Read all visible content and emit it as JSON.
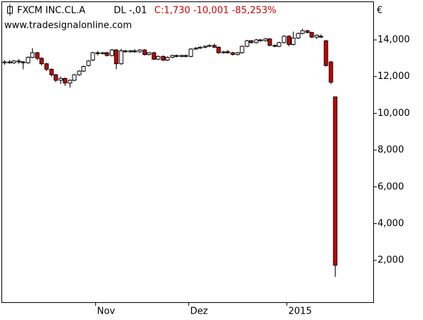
{
  "chart_data": {
    "type": "candlestick",
    "title": "FXCM INC.CL.A",
    "subtitle": "DL -,01",
    "quote": "C:1,730 -10,001 -85,253%",
    "watermark": "www.tradesignalonline.com",
    "currency": "€",
    "categories": [
      null,
      null,
      null,
      null,
      null,
      null,
      null,
      null,
      null,
      null,
      null,
      null,
      null,
      null,
      null,
      null,
      null,
      null,
      null,
      null,
      "Nov",
      null,
      null,
      null,
      null,
      null,
      null,
      null,
      null,
      null,
      null,
      null,
      null,
      null,
      null,
      null,
      null,
      null,
      null,
      null,
      "Dez",
      null,
      null,
      null,
      null,
      null,
      null,
      null,
      null,
      null,
      null,
      null,
      null,
      null,
      null,
      null,
      null,
      null,
      null,
      null,
      null,
      "2015",
      null,
      null,
      null,
      null,
      null,
      null,
      null,
      null,
      null,
      null
    ],
    "open": [
      12750,
      12800,
      12750,
      12850,
      12800,
      12750,
      13050,
      13300,
      13000,
      12700,
      12400,
      12100,
      11800,
      11900,
      11650,
      11800,
      12100,
      12300,
      12600,
      12900,
      13300,
      13250,
      13300,
      13150,
      13450,
      12700,
      13400,
      13350,
      13400,
      13350,
      13450,
      13200,
      13300,
      12950,
      13100,
      12900,
      13050,
      13150,
      13100,
      13150,
      13100,
      13500,
      13550,
      13600,
      13650,
      13700,
      13600,
      13300,
      13350,
      13300,
      13200,
      13300,
      13650,
      13950,
      13850,
      14000,
      13950,
      14050,
      13700,
      13650,
      13850,
      14200,
      13750,
      14100,
      14350,
      14500,
      14400,
      14150,
      14200,
      13950,
      12800,
      10900
    ],
    "high": [
      12900,
      12900,
      12900,
      12950,
      12850,
      13100,
      13550,
      13350,
      13050,
      12750,
      12450,
      12150,
      12000,
      11950,
      11850,
      12150,
      12350,
      12600,
      12900,
      13350,
      13400,
      13350,
      13350,
      13500,
      13500,
      13500,
      13450,
      13450,
      13500,
      13500,
      13500,
      13350,
      13350,
      13150,
      13150,
      13100,
      13200,
      13200,
      13200,
      13200,
      13550,
      13600,
      13650,
      13700,
      13750,
      13800,
      13650,
      13400,
      13450,
      13350,
      13350,
      13700,
      14000,
      14000,
      14050,
      14050,
      14100,
      14100,
      13750,
      13900,
      14250,
      14250,
      14450,
      14400,
      14600,
      14550,
      14450,
      14300,
      14300,
      14000,
      12850,
      10900
    ],
    "low": [
      12650,
      12700,
      12700,
      12700,
      12400,
      12700,
      13000,
      12900,
      12600,
      12300,
      12000,
      11700,
      11600,
      11500,
      11400,
      11750,
      12050,
      12250,
      12550,
      12850,
      13150,
      13200,
      13100,
      13100,
      12400,
      12650,
      13300,
      13300,
      13300,
      13300,
      13150,
      13150,
      12900,
      12900,
      12850,
      12850,
      13000,
      13050,
      13050,
      13050,
      13050,
      13450,
      13500,
      13550,
      13600,
      13550,
      13250,
      13250,
      13250,
      13150,
      13150,
      13250,
      13600,
      13800,
      13800,
      13900,
      13900,
      13650,
      13600,
      13600,
      13800,
      13650,
      13700,
      14050,
      14300,
      14350,
      14100,
      14050,
      14100,
      12550,
      11600,
      1100
    ],
    "close": [
      12800,
      12750,
      12850,
      12800,
      12750,
      13050,
      13300,
      13000,
      12700,
      12400,
      12100,
      11800,
      11900,
      11650,
      11800,
      12100,
      12300,
      12550,
      12850,
      13300,
      13250,
      13300,
      13150,
      13450,
      12700,
      13400,
      13350,
      13400,
      13350,
      13450,
      13200,
      13300,
      12950,
      13100,
      12900,
      13050,
      13150,
      13100,
      13150,
      13100,
      13500,
      13550,
      13600,
      13650,
      13700,
      13600,
      13300,
      13350,
      13300,
      13200,
      13300,
      13650,
      13950,
      13850,
      14000,
      13950,
      14050,
      13700,
      13650,
      13850,
      14200,
      13750,
      14100,
      14350,
      14500,
      14400,
      14150,
      14250,
      14150,
      12600,
      11700,
      1730
    ],
    "up_color": "#ffffff",
    "down_color": "#cc0000",
    "ylim": [
      -280,
      16170
    ],
    "yticks": [
      {
        "value": 2000,
        "label": "2,000"
      },
      {
        "value": 4000,
        "label": "4,000"
      },
      {
        "value": 6000,
        "label": "6,000"
      },
      {
        "value": 8000,
        "label": "8,000"
      },
      {
        "value": 10000,
        "label": "10,000"
      },
      {
        "value": 12000,
        "label": "12,000"
      },
      {
        "value": 14000,
        "label": "14,000"
      }
    ]
  }
}
